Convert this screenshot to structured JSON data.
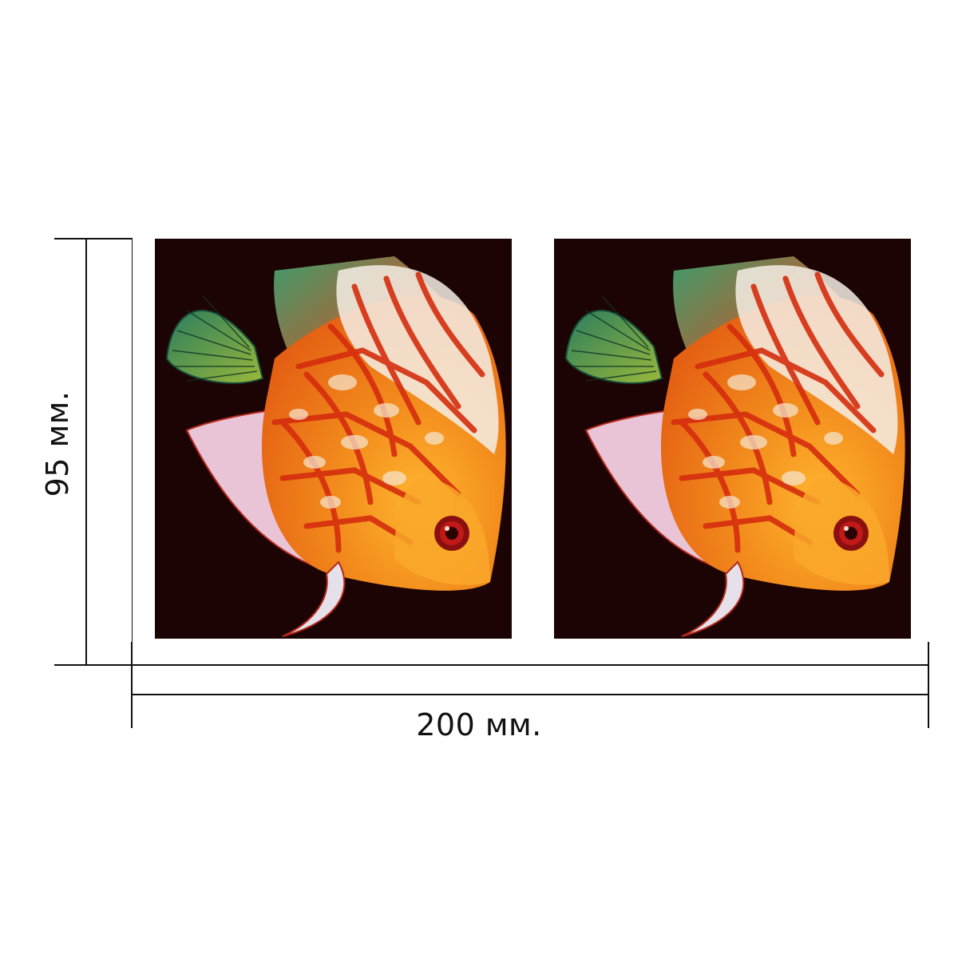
{
  "dimensions": {
    "width_label": "200 мм.",
    "height_label": "95 мм."
  },
  "panels": [
    {
      "subject": "discus-fish"
    },
    {
      "subject": "discus-fish"
    }
  ],
  "colors": {
    "panel_background": "#1c0404",
    "fish_orange": "#f08a1a",
    "fish_red": "#d8380c",
    "fin_green": "#3c9a6e",
    "line": "#111111"
  }
}
